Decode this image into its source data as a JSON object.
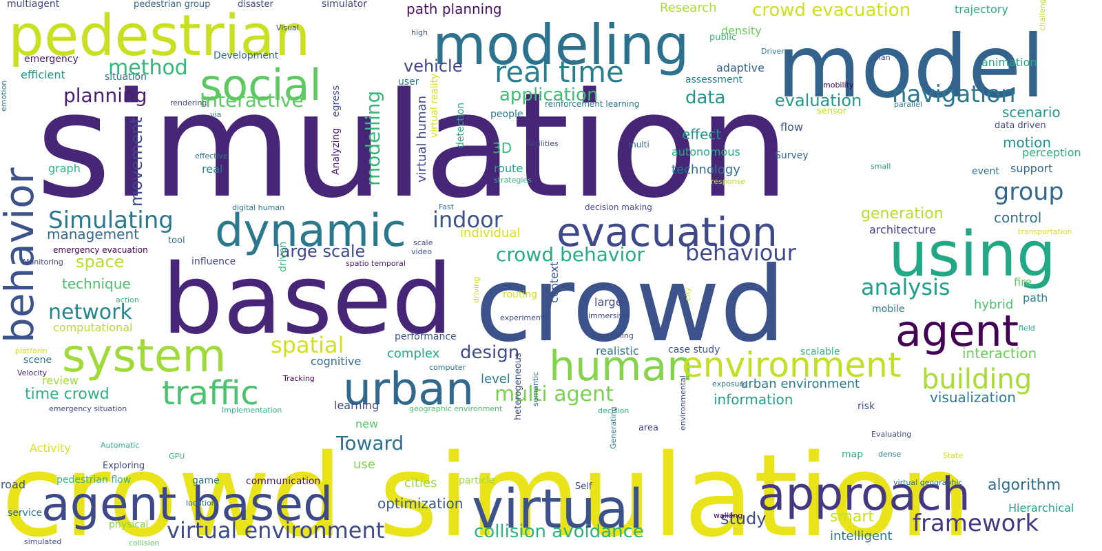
{
  "words": [
    {
      "text": "simulation",
      "color": "#482677"
    },
    {
      "text": "crowd simulation",
      "color": "#e8e419"
    },
    {
      "text": "crowd",
      "color": "#3b528b"
    },
    {
      "text": "based",
      "color": "#482677"
    },
    {
      "text": "model",
      "color": "#33638d"
    },
    {
      "text": "modeling",
      "color": "#2c728e"
    },
    {
      "text": "pedestrian",
      "color": "#c8e020"
    },
    {
      "text": "using",
      "color": "#22a884"
    },
    {
      "text": "agent based",
      "color": "#3e4989"
    },
    {
      "text": "virtual",
      "color": "#3b528b"
    },
    {
      "text": "approach",
      "color": "#453781"
    },
    {
      "text": "dynamic",
      "color": "#2a788e"
    },
    {
      "text": "evacuation",
      "color": "#3e4989"
    },
    {
      "text": "social",
      "color": "#5ec962"
    },
    {
      "text": "system",
      "color": "#a0da39"
    },
    {
      "text": "behavior",
      "color": "#3b528b"
    },
    {
      "text": "urban",
      "color": "#31688e"
    },
    {
      "text": "agent",
      "color": "#440154"
    },
    {
      "text": "human",
      "color": "#84d44b"
    },
    {
      "text": "environment",
      "color": "#c2df23"
    },
    {
      "text": "traffic",
      "color": "#4ac16d"
    },
    {
      "text": "real time",
      "color": "#287d8e"
    },
    {
      "text": "building",
      "color": "#a8db34"
    },
    {
      "text": "navigation",
      "color": "#2a788e"
    },
    {
      "text": "group",
      "color": "#31688e"
    },
    {
      "text": "framework",
      "color": "#453781"
    },
    {
      "text": "virtual environment",
      "color": "#3e4989"
    },
    {
      "text": "crowd evacuation",
      "color": "#d0e11c"
    },
    {
      "text": "collision avoidance",
      "color": "#2db27d"
    },
    {
      "text": "behaviour",
      "color": "#3e4989"
    },
    {
      "text": "crowd behavior",
      "color": "#25ab82"
    },
    {
      "text": "Simulating",
      "color": "#2a788e"
    },
    {
      "text": "spatial",
      "color": "#d0e11c"
    },
    {
      "text": "analysis",
      "color": "#1f9e89"
    },
    {
      "text": "multi agent",
      "color": "#7ad151"
    },
    {
      "text": "large scale",
      "color": "#3e4989"
    },
    {
      "text": "indoor",
      "color": "#3b528b"
    },
    {
      "text": "network",
      "color": "#25858e"
    },
    {
      "text": "planning",
      "color": "#481f70"
    },
    {
      "text": "method",
      "color": "#35b779"
    },
    {
      "text": "Interactive",
      "color": "#5ec962"
    },
    {
      "text": "application",
      "color": "#3dbc74"
    },
    {
      "text": "data",
      "color": "#1f968b"
    },
    {
      "text": "evaluation",
      "color": "#1f988b"
    },
    {
      "text": "modelling",
      "color": "#35b779"
    },
    {
      "text": "movement",
      "color": "#3e4989"
    },
    {
      "text": "Toward",
      "color": "#2c728e"
    },
    {
      "text": "design",
      "color": "#3e4989"
    },
    {
      "text": "path planning",
      "color": "#471063"
    },
    {
      "text": "vehicle",
      "color": "#404688"
    },
    {
      "text": "space",
      "color": "#b5de2b"
    },
    {
      "text": "technique",
      "color": "#4ac16d"
    },
    {
      "text": "time crowd",
      "color": "#2db27d"
    },
    {
      "text": "management",
      "color": "#31688e"
    },
    {
      "text": "generation",
      "color": "#b5de2b"
    },
    {
      "text": "control",
      "color": "#2c728e"
    },
    {
      "text": "motion",
      "color": "#218f8d"
    },
    {
      "text": "scenario",
      "color": "#1f988b"
    },
    {
      "text": "visualization",
      "color": "#287d8e"
    },
    {
      "text": "algorithm",
      "color": "#2e6e8e"
    },
    {
      "text": "interaction",
      "color": "#6ccd5a"
    },
    {
      "text": "information",
      "color": "#1fa287"
    },
    {
      "text": "urban environment",
      "color": "#2a788e"
    },
    {
      "text": "optimization",
      "color": "#39568c"
    },
    {
      "text": "study",
      "color": "#3e4989"
    },
    {
      "text": "smart",
      "color": "#c8e020"
    },
    {
      "text": "Research",
      "color": "#a8db34"
    },
    {
      "text": "trajectory",
      "color": "#25ab82"
    },
    {
      "text": "animation",
      "color": "#22a884"
    },
    {
      "text": "density",
      "color": "#6ccd5a"
    },
    {
      "text": "adaptive",
      "color": "#33638d"
    },
    {
      "text": "assessment",
      "color": "#26828e"
    },
    {
      "text": "effect",
      "color": "#1f968b"
    },
    {
      "text": "autonomous",
      "color": "#25ab82"
    },
    {
      "text": "technology",
      "color": "#2c728e"
    },
    {
      "text": "3D",
      "color": "#35b779"
    },
    {
      "text": "route",
      "color": "#1f9e89"
    },
    {
      "text": "flow",
      "color": "#3b528b"
    },
    {
      "text": "Survey",
      "color": "#33638d"
    },
    {
      "text": "event",
      "color": "#2c728e"
    },
    {
      "text": "support",
      "color": "#33638d"
    },
    {
      "text": "perception",
      "color": "#2db27d"
    },
    {
      "text": "data driven",
      "color": "#3e4989"
    },
    {
      "text": "architecture",
      "color": "#414487"
    },
    {
      "text": "fire",
      "color": "#5ec962"
    },
    {
      "text": "hybrid",
      "color": "#4ac16d"
    },
    {
      "text": "path",
      "color": "#26828e"
    },
    {
      "text": "mobile",
      "color": "#2a788e"
    },
    {
      "text": "scalable",
      "color": "#35b779"
    },
    {
      "text": "realistic",
      "color": "#2c728e"
    },
    {
      "text": "case study",
      "color": "#3b528b"
    },
    {
      "text": "complex",
      "color": "#22a884"
    },
    {
      "text": "cognitive",
      "color": "#31688e"
    },
    {
      "text": "performance",
      "color": "#3b528b"
    },
    {
      "text": "individual",
      "color": "#d8e219"
    },
    {
      "text": "influence",
      "color": "#3e4989"
    },
    {
      "text": "computational",
      "color": "#b5de2b"
    },
    {
      "text": "scene",
      "color": "#2c728e"
    },
    {
      "text": "review",
      "color": "#a0da39"
    },
    {
      "text": "level",
      "color": "#2a788e"
    },
    {
      "text": "learning",
      "color": "#3e4989"
    },
    {
      "text": "new",
      "color": "#5ec962"
    },
    {
      "text": "use",
      "color": "#84d44b"
    },
    {
      "text": "cities",
      "color": "#a0da39"
    },
    {
      "text": "particle",
      "color": "#a0da39"
    },
    {
      "text": "communication",
      "color": "#471063"
    },
    {
      "text": "game",
      "color": "#2c728e"
    },
    {
      "text": "pedestrian flow",
      "color": "#35b779"
    },
    {
      "text": "road",
      "color": "#3b528b"
    },
    {
      "text": "service",
      "color": "#2c728e"
    },
    {
      "text": "physical",
      "color": "#84d44b"
    },
    {
      "text": "Activity",
      "color": "#d8e219"
    },
    {
      "text": "efficient",
      "color": "#1f988b"
    },
    {
      "text": "emergency",
      "color": "#481f70"
    },
    {
      "text": "situation",
      "color": "#2c728e"
    },
    {
      "text": "multiagent",
      "color": "#414487"
    },
    {
      "text": "pedestrian group",
      "color": "#33638d"
    },
    {
      "text": "disaster",
      "color": "#3e4989"
    },
    {
      "text": "simulator",
      "color": "#414487"
    },
    {
      "text": "Development",
      "color": "#33638d"
    },
    {
      "text": "real",
      "color": "#287d8e"
    },
    {
      "text": "tool",
      "color": "#2c728e"
    },
    {
      "text": "emergency evacuation",
      "color": "#440154"
    },
    {
      "text": "user",
      "color": "#2a788e"
    },
    {
      "text": "people",
      "color": "#2a788e"
    },
    {
      "text": "risk",
      "color": "#3b528b"
    },
    {
      "text": "map",
      "color": "#2db27d"
    },
    {
      "text": "large",
      "color": "#3e4989"
    },
    {
      "text": "immersive",
      "color": "#404688"
    },
    {
      "text": "routing",
      "color": "#d0e11c"
    },
    {
      "text": "experiment",
      "color": "#3b528b"
    },
    {
      "text": "context",
      "color": "#3b528b"
    },
    {
      "text": "driven",
      "color": "#35b779"
    },
    {
      "text": "virtual human",
      "color": "#3e4989"
    },
    {
      "text": "virtual reality",
      "color": "#d8e219"
    },
    {
      "text": "detection",
      "color": "#22a884"
    },
    {
      "text": "Analyzing",
      "color": "#481f70"
    },
    {
      "text": "egress",
      "color": "#3e4989"
    },
    {
      "text": "graph",
      "color": "#2db27d"
    },
    {
      "text": "effective",
      "color": "#2c728e"
    },
    {
      "text": "via",
      "color": "#2c728e"
    },
    {
      "text": "rendering",
      "color": "#3e4989"
    },
    {
      "text": "emotion",
      "color": "#2a788e"
    },
    {
      "text": "Visual",
      "color": "#3e4989"
    },
    {
      "text": "high",
      "color": "#3b528b"
    },
    {
      "text": "public",
      "color": "#35b779"
    },
    {
      "text": "Driver",
      "color": "#2a788e"
    },
    {
      "text": "plan",
      "color": "#3b528b"
    },
    {
      "text": "challenge",
      "color": "#b5de2b"
    },
    {
      "text": "mobility",
      "color": "#440154"
    },
    {
      "text": "parallel",
      "color": "#2c728e"
    },
    {
      "text": "sensor",
      "color": "#c8e020"
    },
    {
      "text": "reinforcement learning",
      "color": "#2a788e"
    },
    {
      "text": "facilities",
      "color": "#3e4989"
    },
    {
      "text": "multi",
      "color": "#31688e"
    },
    {
      "text": "strategies",
      "color": "#35b779"
    },
    {
      "text": "response",
      "color": "#b5de2b"
    },
    {
      "text": "small",
      "color": "#22a884"
    },
    {
      "text": "transportation",
      "color": "#d8e219"
    },
    {
      "text": "field",
      "color": "#22a884"
    },
    {
      "text": "Fast",
      "color": "#2c728e"
    },
    {
      "text": "decision making",
      "color": "#3e4989"
    },
    {
      "text": "digital human",
      "color": "#2a788e"
    },
    {
      "text": "scale",
      "color": "#3e4989"
    },
    {
      "text": "video",
      "color": "#3b528b"
    },
    {
      "text": "spatio temporal",
      "color": "#481f70"
    },
    {
      "text": "Monitoring",
      "color": "#414487"
    },
    {
      "text": "action",
      "color": "#35b779"
    },
    {
      "text": "platform",
      "color": "#d0e11c"
    },
    {
      "text": "Velocity",
      "color": "#481f70"
    },
    {
      "text": "city",
      "color": "#d0e11c"
    },
    {
      "text": "driving",
      "color": "#c8e020"
    },
    {
      "text": "Controlling",
      "color": "#3e4989"
    },
    {
      "text": "computer",
      "color": "#2c728e"
    },
    {
      "text": "Tracking",
      "color": "#440154"
    },
    {
      "text": "emergency situation",
      "color": "#3e4989"
    },
    {
      "text": "Implementation",
      "color": "#2db27d"
    },
    {
      "text": "geographic environment",
      "color": "#4ac16d"
    },
    {
      "text": "decision",
      "color": "#2db27d"
    },
    {
      "text": "exposure",
      "color": "#2c728e"
    },
    {
      "text": "Evaluating",
      "color": "#3e4989"
    },
    {
      "text": "dense",
      "color": "#26828e"
    },
    {
      "text": "State",
      "color": "#d8e219"
    },
    {
      "text": "area",
      "color": "#3e4989"
    },
    {
      "text": "heterogeneous",
      "color": "#3e4989"
    },
    {
      "text": "semantic",
      "color": "#2c728e"
    },
    {
      "text": "environmental",
      "color": "#3e4989"
    },
    {
      "text": "Generating",
      "color": "#2a788e"
    },
    {
      "text": "Automatic",
      "color": "#2db27d"
    },
    {
      "text": "GPU",
      "color": "#35b779"
    },
    {
      "text": "Exploring",
      "color": "#3e4989"
    },
    {
      "text": "Self",
      "color": "#3e4989"
    },
    {
      "text": "location",
      "color": "#2c728e"
    },
    {
      "text": "simulated",
      "color": "#3e4989"
    },
    {
      "text": "collision",
      "color": "#5ec962"
    },
    {
      "text": "walking",
      "color": "#440154"
    },
    {
      "text": "virtual geographic",
      "color": "#2c728e"
    },
    {
      "text": "Hierarchical",
      "color": "#1f9e89"
    },
    {
      "text": "intelligent",
      "color": "#2a788e"
    }
  ]
}
